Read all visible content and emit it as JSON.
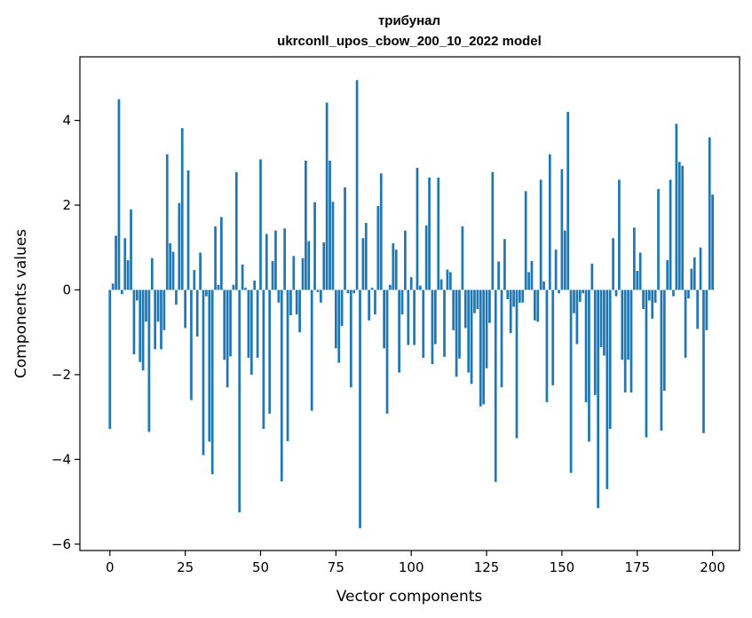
{
  "chart_data": {
    "type": "bar",
    "title": "трибунал",
    "subtitle": "ukrconll_upos_cbow_200_10_2022 model",
    "xlabel": "Vector components",
    "ylabel": "Components values",
    "xlim": [
      -9.95,
      208.95
    ],
    "ylim": [
      -6.15,
      5.5
    ],
    "x_ticks": [
      0,
      25,
      50,
      75,
      100,
      125,
      150,
      175,
      200
    ],
    "y_ticks": [
      -6,
      -4,
      -2,
      0,
      2,
      4
    ],
    "y_tick_labels": [
      "−6",
      "−4",
      "−2",
      "0",
      "2",
      "4"
    ],
    "grid": false,
    "bar_color": "#1f77b4",
    "series": [
      {
        "values": [
          -3.28,
          0.15,
          1.28,
          4.5,
          -0.1,
          1.22,
          0.7,
          1.9,
          -1.52,
          -0.25,
          -1.7,
          -1.9,
          -0.75,
          -3.35,
          0.75,
          -1.4,
          -0.75,
          -1.4,
          -0.95,
          3.2,
          1.1,
          0.9,
          -0.35,
          2.05,
          3.82,
          -0.9,
          2.82,
          -2.6,
          0.47,
          -1.1,
          0.88,
          -3.9,
          -0.15,
          -3.58,
          -4.35,
          1.5,
          0.12,
          1.72,
          -1.65,
          -2.3,
          -1.57,
          0.12,
          2.78,
          -5.25,
          0.6,
          0.05,
          -1.6,
          -2.0,
          0.22,
          -1.6,
          3.08,
          -3.28,
          1.32,
          -2.92,
          0.68,
          1.4,
          -0.3,
          -4.52,
          1.45,
          -3.57,
          -0.6,
          0.8,
          -0.58,
          -1.0,
          0.75,
          3.05,
          1.15,
          -2.85,
          2.07,
          -0.05,
          -0.3,
          1.12,
          4.42,
          3.05,
          2.08,
          -1.38,
          -1.72,
          -0.85,
          2.42,
          -0.08,
          -2.3,
          -0.08,
          4.95,
          -5.62,
          1.22,
          1.58,
          -0.72,
          0.05,
          -0.58,
          1.98,
          2.75,
          -1.38,
          -2.92,
          0.12,
          1.1,
          0.95,
          -1.95,
          -0.58,
          1.4,
          -1.3,
          0.3,
          -1.3,
          2.88,
          0.1,
          -1.6,
          1.52,
          2.65,
          -1.75,
          -1.28,
          2.65,
          0.25,
          -1.58,
          0.48,
          0.42,
          -0.95,
          -2.05,
          -1.62,
          1.5,
          -0.9,
          -1.95,
          -2.22,
          -0.55,
          -0.45,
          -2.75,
          -2.7,
          -1.85,
          -0.78,
          2.78,
          -4.53,
          0.67,
          -2.3,
          1.2,
          -0.22,
          -1.02,
          -0.4,
          -3.5,
          -0.3,
          -0.3,
          2.33,
          0.42,
          0.68,
          -0.72,
          -0.75,
          2.6,
          0.2,
          -2.65,
          3.2,
          -2.25,
          0.95,
          -0.08,
          2.85,
          1.4,
          4.2,
          -4.32,
          -0.55,
          -1.28,
          -0.28,
          -0.08,
          -2.65,
          -3.58,
          0.62,
          -2.48,
          -5.15,
          -1.35,
          -1.55,
          -4.7,
          -3.28,
          1.22,
          -0.15,
          2.6,
          -1.65,
          -2.42,
          -1.65,
          -2.42,
          1.47,
          0.45,
          0.88,
          -0.45,
          -3.48,
          -0.25,
          -0.68,
          -0.3,
          2.38,
          -3.32,
          -2.38,
          0.7,
          2.6,
          -0.15,
          3.92,
          3.02,
          2.93,
          -1.6,
          -0.2,
          0.5,
          0.77,
          -0.92,
          1.0,
          -3.38,
          -0.95,
          3.6,
          2.25
        ]
      }
    ]
  }
}
